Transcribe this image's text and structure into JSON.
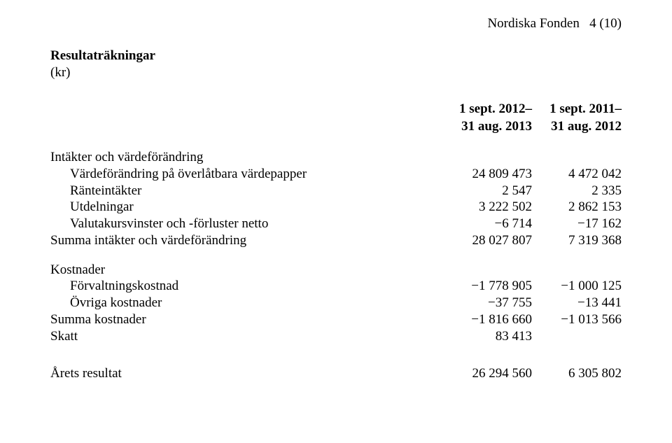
{
  "header": {
    "doc_title": "Nordiska Fonden",
    "page_of": "4 (10)"
  },
  "title": "Resultaträkningar",
  "unit": "(kr)",
  "columns": {
    "c1_line1": "1 sept. 2012–",
    "c1_line2": "31 aug. 2013",
    "c2_line1": "1 sept. 2011–",
    "c2_line2": "31 aug. 2012"
  },
  "rows": {
    "intakter_heading": "Intäkter och värdeförändring",
    "vardeforandring_label": "Värdeförändring på överlåtbara värdepapper",
    "vardeforandring_c1": "24 809 473",
    "vardeforandring_c2": "4 472 042",
    "ranteintakter_label": "Ränteintäkter",
    "ranteintakter_c1": "2 547",
    "ranteintakter_c2": "2 335",
    "utdelningar_label": "Utdelningar",
    "utdelningar_c1": "3 222 502",
    "utdelningar_c2": "2 862 153",
    "valutakurs_label": "Valutakursvinster och -förluster netto",
    "valutakurs_c1": "6 714",
    "valutakurs_c2": "17 162",
    "summa_intakter_label": "Summa intäkter och värdeförändring",
    "summa_intakter_c1": "28 027 807",
    "summa_intakter_c2": "7 319 368",
    "kostnader_heading": "Kostnader",
    "forvaltning_label": "Förvaltningskostnad",
    "forvaltning_c1": "1 778 905",
    "forvaltning_c2": "1 000 125",
    "ovriga_label": "Övriga kostnader",
    "ovriga_c1": "37 755",
    "ovriga_c2": "13 441",
    "summa_kostnader_label": "Summa kostnader",
    "summa_kostnader_c1": "1 816 660",
    "summa_kostnader_c2": "1 013 566",
    "skatt_label": "Skatt",
    "skatt_c1": "83 413",
    "arets_label": "Årets resultat",
    "arets_c1": "26 294 560",
    "arets_c2": "6 305 802"
  }
}
